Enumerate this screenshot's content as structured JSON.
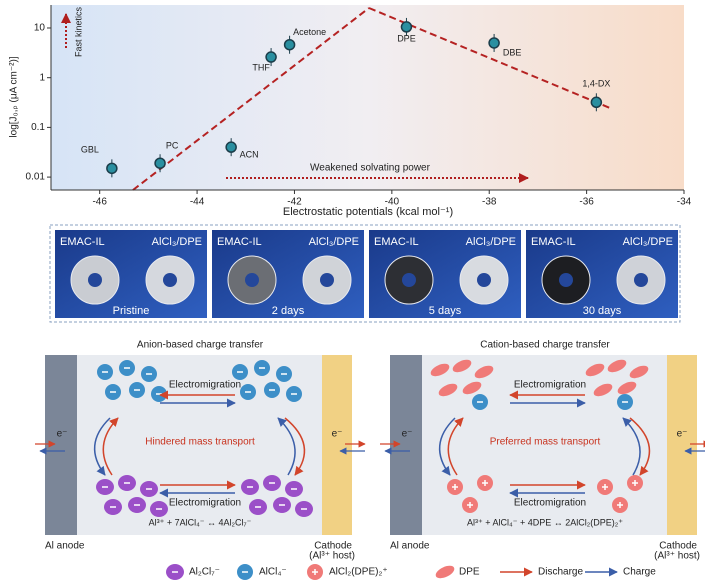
{
  "chart_data": {
    "type": "scatter",
    "x_label": "Electrostatic potentials (kcal mol⁻¹)",
    "y_label": "log[J₀,ₚ (μA cm⁻²)]",
    "annotations": [
      "Fast kinetics",
      "Weakened solvating power"
    ],
    "labels": [
      "GBL",
      "PC",
      "ACN",
      "THF",
      "Acetone",
      "DPE",
      "DBE",
      "1,4-DX"
    ],
    "x": [
      -45.75,
      -44.76,
      -43.3,
      -42.48,
      -42.1,
      -39.7,
      -37.9,
      -35.8
    ],
    "values": [
      0.015,
      0.019,
      0.04,
      2.6,
      4.6,
      10.5,
      5,
      0.32
    ],
    "color": "#2a8fa0",
    "xlim": [
      -47,
      -34
    ],
    "xticks": [
      -46,
      -44,
      -42,
      -40,
      -38,
      -36,
      -34
    ],
    "ylim": [
      0.0055,
      29
    ],
    "yticks": [
      0.01,
      0.1,
      1,
      10
    ],
    "log_y": true
  },
  "photos": [
    {
      "left": "EMAC-IL",
      "right": "AlCl₃/DPE",
      "caption": "Pristine"
    },
    {
      "left": "EMAC-IL",
      "right": "AlCl₃/DPE",
      "caption": "2 days"
    },
    {
      "left": "EMAC-IL",
      "right": "AlCl₃/DPE",
      "caption": "5 days"
    },
    {
      "left": "EMAC-IL",
      "right": "AlCl₃/DPE",
      "caption": "30 days"
    }
  ],
  "diagrams": [
    {
      "title": "Anion-based charge transfer",
      "electromigration": "Electromigration",
      "middle": "Hindered mass transport",
      "equation": "Al³⁺ + 7AlCl₄⁻ ↔ 4Al₂Cl₇⁻",
      "electron": "e⁻",
      "anode": "Al anode",
      "cathode": "Cathode",
      "cathode_host": "(Al³⁺ host)"
    },
    {
      "title": "Cation-based charge transfer",
      "electromigration": "Electromigration",
      "middle": "Preferred mass transport",
      "equation": "Al³⁺ + AlCl₄⁻ + 4DPE ↔ 2AlCl₂(DPE)₂⁺",
      "electron": "e⁻",
      "anode": "Al anode",
      "cathode": "Cathode",
      "cathode_host": "(Al³⁺ host)"
    }
  ],
  "legend": [
    "Al₂Cl₇⁻",
    "AlCl₄⁻",
    "AlCl₂(DPE)₂⁺",
    "DPE",
    "Discharge",
    "Charge"
  ]
}
